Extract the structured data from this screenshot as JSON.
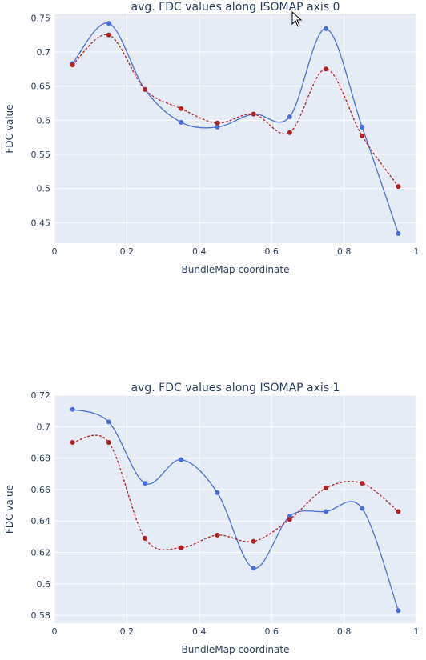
{
  "chart_data": [
    {
      "type": "line",
      "title": "avg. FDC values along ISOMAP axis 0",
      "xlabel": "BundleMap coordinate",
      "ylabel": "FDC value",
      "xlim": [
        0,
        1
      ],
      "ylim": [
        0.42,
        0.755
      ],
      "xticks": [
        0,
        0.2,
        0.4,
        0.6,
        0.8,
        1
      ],
      "xtick_labels": [
        "0",
        "0.2",
        "0.4",
        "0.6",
        "0.8",
        "1"
      ],
      "yticks": [
        0.45,
        0.5,
        0.55,
        0.6,
        0.65,
        0.7,
        0.75
      ],
      "ytick_labels": [
        "0.45",
        "0.5",
        "0.55",
        "0.6",
        "0.65",
        "0.7",
        "0.75"
      ],
      "grid": true,
      "x": [
        0.05,
        0.15,
        0.25,
        0.35,
        0.45,
        0.55,
        0.65,
        0.75,
        0.85,
        0.95
      ],
      "series": [
        {
          "values": [
            0.683,
            0.742,
            0.645,
            0.597,
            0.59,
            0.609,
            0.605,
            0.734,
            0.59,
            0.434
          ],
          "color": "#4a6fd8",
          "style": "solid"
        },
        {
          "values": [
            0.681,
            0.725,
            0.645,
            0.617,
            0.596,
            0.609,
            0.582,
            0.675,
            0.577,
            0.503
          ],
          "color": "#b22222",
          "style": "dashed"
        }
      ]
    },
    {
      "type": "line",
      "title": "avg. FDC values along ISOMAP axis 1",
      "xlabel": "BundleMap coordinate",
      "ylabel": "FDC value",
      "xlim": [
        0,
        1
      ],
      "ylim": [
        0.575,
        0.72
      ],
      "xticks": [
        0,
        0.2,
        0.4,
        0.6,
        0.8,
        1
      ],
      "xtick_labels": [
        "0",
        "0.2",
        "0.4",
        "0.6",
        "0.8",
        "1"
      ],
      "yticks": [
        0.58,
        0.6,
        0.62,
        0.64,
        0.66,
        0.68,
        0.7,
        0.72
      ],
      "ytick_labels": [
        "0.58",
        "0.6",
        "0.62",
        "0.64",
        "0.66",
        "0.68",
        "0.7",
        "0.72"
      ],
      "grid": true,
      "x": [
        0.05,
        0.15,
        0.25,
        0.35,
        0.45,
        0.55,
        0.65,
        0.75,
        0.85,
        0.95
      ],
      "series": [
        {
          "values": [
            0.711,
            0.703,
            0.664,
            0.679,
            0.658,
            0.61,
            0.643,
            0.646,
            0.648,
            0.583
          ],
          "color": "#4a6fd8",
          "style": "solid"
        },
        {
          "values": [
            0.69,
            0.69,
            0.629,
            0.623,
            0.631,
            0.627,
            0.641,
            0.661,
            0.664,
            0.646
          ],
          "color": "#b22222",
          "style": "dashed"
        }
      ]
    }
  ]
}
